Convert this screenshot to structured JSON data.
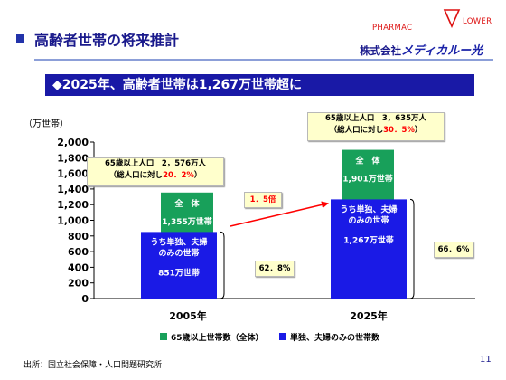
{
  "header": {
    "title": "高齢者世帯の将来推計",
    "logo": {
      "prefix": "株式会社",
      "brand": "メディカルー光",
      "word1": "PHARMAC",
      "word2": "LOWER"
    }
  },
  "banner": "◆2025年、高齢者世帯は1,267万世帯超に",
  "unit_label": "（万世帯）",
  "source": "出所：国立社会保障・人口問題研究所",
  "page_number": "11",
  "callouts": {
    "y2005_line1": "65歳以上人口　2，576万人",
    "y2005_line2_prefix": "（総人口に対し",
    "y2005_pct": "20．2%",
    "y2005_line2_suffix": "）",
    "y2025_line1": "65歳以上人口　3，635万人",
    "y2025_line2_prefix": "（総人口に対し",
    "y2025_pct": "30．5%",
    "y2025_line2_suffix": "）",
    "growth": "1．5倍",
    "share_2005": "62．8%",
    "share_2025": "66．6%"
  },
  "chart_data": {
    "type": "bar",
    "categories": [
      "2005年",
      "2025年"
    ],
    "series": [
      {
        "name": "65歳以上世帯数（全体）",
        "values": [
          1355,
          1901
        ],
        "color": "#18a05a",
        "labels": [
          [
            "全　体",
            "1,355万世帯"
          ],
          [
            "全　体",
            "1,901万世帯"
          ]
        ]
      },
      {
        "name": "単独、夫婦のみの世帯数",
        "values": [
          851,
          1267
        ],
        "color": "#1a1ae6",
        "labels": [
          [
            "うち単独、夫婦",
            "のみの世帯",
            "851万世帯"
          ],
          [
            "うち単独、夫婦",
            "のみの世帯",
            "1,267万世帯"
          ]
        ]
      }
    ],
    "ylim": [
      0,
      2000
    ],
    "yticks": [
      0,
      200,
      400,
      600,
      800,
      1000,
      1200,
      1400,
      1600,
      1800,
      2000
    ],
    "ytick_labels": [
      "0",
      "200",
      "400",
      "600",
      "800",
      "1,000",
      "1,200",
      "1,400",
      "1,600",
      "1,800",
      "2,000"
    ],
    "grid": false,
    "legend": "bottom"
  }
}
